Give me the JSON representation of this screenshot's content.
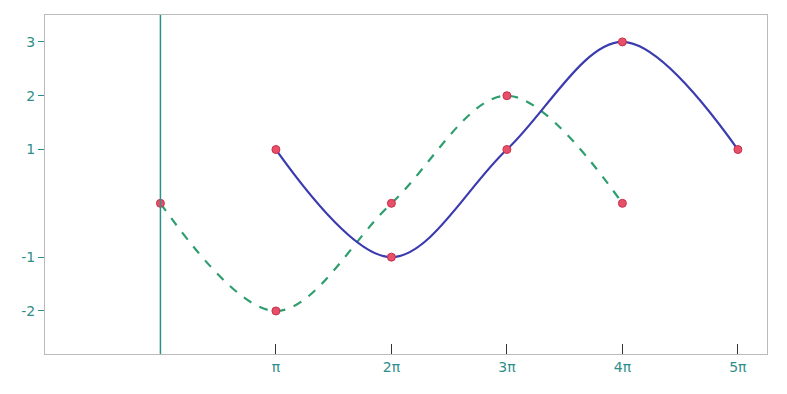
{
  "chart_data": {
    "type": "line",
    "x": [
      0,
      3.1416,
      6.2832,
      9.4248,
      12.5664,
      15.708
    ],
    "series": [
      {
        "color": "#2e9e6e",
        "line_style": "dashed",
        "marker": "circle",
        "values": [
          0,
          -2,
          0,
          2,
          0,
          null
        ]
      },
      {
        "color": "#3b3bb0",
        "line_style": "solid",
        "marker": "circle",
        "values": [
          null,
          1,
          -1,
          1,
          3,
          1
        ]
      }
    ],
    "xlim": [
      -3.14,
      16.5
    ],
    "ylim": [
      -2.8,
      3.5
    ],
    "xticks": [
      {
        "value": 3.1416,
        "label": "π"
      },
      {
        "value": 6.2832,
        "label": "2π"
      },
      {
        "value": 9.4248,
        "label": "3π"
      },
      {
        "value": 12.5664,
        "label": "4π"
      },
      {
        "value": 15.708,
        "label": "5π"
      }
    ],
    "yticks": [
      -2,
      -1,
      1,
      2,
      3
    ],
    "grid": false
  }
}
